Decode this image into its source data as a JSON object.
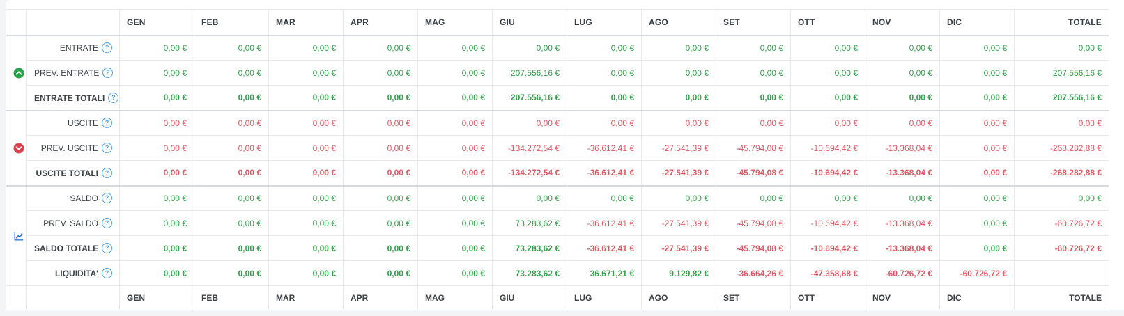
{
  "colors": {
    "positive": "#33a24c",
    "negative": "#e25865",
    "income_icon": "#27a348",
    "expense_icon": "#e0414e",
    "chart_icon": "#2f7fdb",
    "help_icon": "#49a0ea"
  },
  "table": {
    "columns": [
      "GEN",
      "FEB",
      "MAR",
      "APR",
      "MAG",
      "GIU",
      "LUG",
      "AGO",
      "SET",
      "OTT",
      "NOV",
      "DIC"
    ],
    "total_column": "TOTALE",
    "help_glyph": "?",
    "groups": [
      {
        "icon": "circle-arrow-up-icon",
        "rows": [
          {
            "label": "ENTRATE",
            "bold": false,
            "cells": [
              {
                "v": "0,00 €",
                "c": "g"
              },
              {
                "v": "0,00 €",
                "c": "g"
              },
              {
                "v": "0,00 €",
                "c": "g"
              },
              {
                "v": "0,00 €",
                "c": "g"
              },
              {
                "v": "0,00 €",
                "c": "g"
              },
              {
                "v": "0,00 €",
                "c": "g"
              },
              {
                "v": "0,00 €",
                "c": "g"
              },
              {
                "v": "0,00 €",
                "c": "g"
              },
              {
                "v": "0,00 €",
                "c": "g"
              },
              {
                "v": "0,00 €",
                "c": "g"
              },
              {
                "v": "0,00 €",
                "c": "g"
              },
              {
                "v": "0,00 €",
                "c": "g"
              },
              {
                "v": "0,00 €",
                "c": "g"
              }
            ]
          },
          {
            "label": "PREV. ENTRATE",
            "bold": false,
            "cells": [
              {
                "v": "0,00 €",
                "c": "g"
              },
              {
                "v": "0,00 €",
                "c": "g"
              },
              {
                "v": "0,00 €",
                "c": "g"
              },
              {
                "v": "0,00 €",
                "c": "g"
              },
              {
                "v": "0,00 €",
                "c": "g"
              },
              {
                "v": "207.556,16 €",
                "c": "g"
              },
              {
                "v": "0,00 €",
                "c": "g"
              },
              {
                "v": "0,00 €",
                "c": "g"
              },
              {
                "v": "0,00 €",
                "c": "g"
              },
              {
                "v": "0,00 €",
                "c": "g"
              },
              {
                "v": "0,00 €",
                "c": "g"
              },
              {
                "v": "0,00 €",
                "c": "g"
              },
              {
                "v": "207.556,16 €",
                "c": "g"
              }
            ]
          },
          {
            "label": "ENTRATE TOTALI",
            "bold": true,
            "cells": [
              {
                "v": "0,00 €",
                "c": "g"
              },
              {
                "v": "0,00 €",
                "c": "g"
              },
              {
                "v": "0,00 €",
                "c": "g"
              },
              {
                "v": "0,00 €",
                "c": "g"
              },
              {
                "v": "0,00 €",
                "c": "g"
              },
              {
                "v": "207.556,16 €",
                "c": "g"
              },
              {
                "v": "0,00 €",
                "c": "g"
              },
              {
                "v": "0,00 €",
                "c": "g"
              },
              {
                "v": "0,00 €",
                "c": "g"
              },
              {
                "v": "0,00 €",
                "c": "g"
              },
              {
                "v": "0,00 €",
                "c": "g"
              },
              {
                "v": "0,00 €",
                "c": "g"
              },
              {
                "v": "207.556,16 €",
                "c": "g"
              }
            ]
          }
        ]
      },
      {
        "icon": "circle-arrow-down-icon",
        "rows": [
          {
            "label": "USCITE",
            "bold": false,
            "cells": [
              {
                "v": "0,00 €",
                "c": "r"
              },
              {
                "v": "0,00 €",
                "c": "r"
              },
              {
                "v": "0,00 €",
                "c": "r"
              },
              {
                "v": "0,00 €",
                "c": "r"
              },
              {
                "v": "0,00 €",
                "c": "r"
              },
              {
                "v": "0,00 €",
                "c": "r"
              },
              {
                "v": "0,00 €",
                "c": "r"
              },
              {
                "v": "0,00 €",
                "c": "r"
              },
              {
                "v": "0,00 €",
                "c": "r"
              },
              {
                "v": "0,00 €",
                "c": "r"
              },
              {
                "v": "0,00 €",
                "c": "r"
              },
              {
                "v": "0,00 €",
                "c": "r"
              },
              {
                "v": "0,00 €",
                "c": "r"
              }
            ]
          },
          {
            "label": "PREV. USCITE",
            "bold": false,
            "cells": [
              {
                "v": "0,00 €",
                "c": "r"
              },
              {
                "v": "0,00 €",
                "c": "r"
              },
              {
                "v": "0,00 €",
                "c": "r"
              },
              {
                "v": "0,00 €",
                "c": "r"
              },
              {
                "v": "0,00 €",
                "c": "r"
              },
              {
                "v": "-134.272,54 €",
                "c": "r"
              },
              {
                "v": "-36.612,41 €",
                "c": "r"
              },
              {
                "v": "-27.541,39 €",
                "c": "r"
              },
              {
                "v": "-45.794,08 €",
                "c": "r"
              },
              {
                "v": "-10.694,42 €",
                "c": "r"
              },
              {
                "v": "-13.368,04 €",
                "c": "r"
              },
              {
                "v": "0,00 €",
                "c": "r"
              },
              {
                "v": "-268.282,88 €",
                "c": "r"
              }
            ]
          },
          {
            "label": "USCITE TOTALI",
            "bold": true,
            "cells": [
              {
                "v": "0,00 €",
                "c": "r"
              },
              {
                "v": "0,00 €",
                "c": "r"
              },
              {
                "v": "0,00 €",
                "c": "r"
              },
              {
                "v": "0,00 €",
                "c": "r"
              },
              {
                "v": "0,00 €",
                "c": "r"
              },
              {
                "v": "-134.272,54 €",
                "c": "r"
              },
              {
                "v": "-36.612,41 €",
                "c": "r"
              },
              {
                "v": "-27.541,39 €",
                "c": "r"
              },
              {
                "v": "-45.794,08 €",
                "c": "r"
              },
              {
                "v": "-10.694,42 €",
                "c": "r"
              },
              {
                "v": "-13.368,04 €",
                "c": "r"
              },
              {
                "v": "0,00 €",
                "c": "r"
              },
              {
                "v": "-268.282,88 €",
                "c": "r"
              }
            ]
          }
        ]
      },
      {
        "icon": "line-chart-icon",
        "rows": [
          {
            "label": "SALDO",
            "bold": false,
            "cells": [
              {
                "v": "0,00 €",
                "c": "g"
              },
              {
                "v": "0,00 €",
                "c": "g"
              },
              {
                "v": "0,00 €",
                "c": "g"
              },
              {
                "v": "0,00 €",
                "c": "g"
              },
              {
                "v": "0,00 €",
                "c": "g"
              },
              {
                "v": "0,00 €",
                "c": "g"
              },
              {
                "v": "0,00 €",
                "c": "g"
              },
              {
                "v": "0,00 €",
                "c": "g"
              },
              {
                "v": "0,00 €",
                "c": "g"
              },
              {
                "v": "0,00 €",
                "c": "g"
              },
              {
                "v": "0,00 €",
                "c": "g"
              },
              {
                "v": "0,00 €",
                "c": "g"
              },
              {
                "v": "0,00 €",
                "c": "g"
              }
            ]
          },
          {
            "label": "PREV. SALDO",
            "bold": false,
            "cells": [
              {
                "v": "0,00 €",
                "c": "g"
              },
              {
                "v": "0,00 €",
                "c": "g"
              },
              {
                "v": "0,00 €",
                "c": "g"
              },
              {
                "v": "0,00 €",
                "c": "g"
              },
              {
                "v": "0,00 €",
                "c": "g"
              },
              {
                "v": "73.283,62 €",
                "c": "g"
              },
              {
                "v": "-36.612,41 €",
                "c": "r"
              },
              {
                "v": "-27.541,39 €",
                "c": "r"
              },
              {
                "v": "-45.794,08 €",
                "c": "r"
              },
              {
                "v": "-10.694,42 €",
                "c": "r"
              },
              {
                "v": "-13.368,04 €",
                "c": "r"
              },
              {
                "v": "0,00 €",
                "c": "g"
              },
              {
                "v": "-60.726,72 €",
                "c": "r"
              }
            ]
          },
          {
            "label": "SALDO TOTALE",
            "bold": true,
            "cells": [
              {
                "v": "0,00 €",
                "c": "g"
              },
              {
                "v": "0,00 €",
                "c": "g"
              },
              {
                "v": "0,00 €",
                "c": "g"
              },
              {
                "v": "0,00 €",
                "c": "g"
              },
              {
                "v": "0,00 €",
                "c": "g"
              },
              {
                "v": "73.283,62 €",
                "c": "g"
              },
              {
                "v": "-36.612,41 €",
                "c": "r"
              },
              {
                "v": "-27.541,39 €",
                "c": "r"
              },
              {
                "v": "-45.794,08 €",
                "c": "r"
              },
              {
                "v": "-10.694,42 €",
                "c": "r"
              },
              {
                "v": "-13.368,04 €",
                "c": "r"
              },
              {
                "v": "0,00 €",
                "c": "g"
              },
              {
                "v": "-60.726,72 €",
                "c": "r"
              }
            ]
          },
          {
            "label": "LIQUIDITA'",
            "bold": true,
            "cells": [
              {
                "v": "0,00 €",
                "c": "g"
              },
              {
                "v": "0,00 €",
                "c": "g"
              },
              {
                "v": "0,00 €",
                "c": "g"
              },
              {
                "v": "0,00 €",
                "c": "g"
              },
              {
                "v": "0,00 €",
                "c": "g"
              },
              {
                "v": "73.283,62 €",
                "c": "g"
              },
              {
                "v": "36.671,21 €",
                "c": "g"
              },
              {
                "v": "9.129,82 €",
                "c": "g"
              },
              {
                "v": "-36.664,26 €",
                "c": "r"
              },
              {
                "v": "-47.358,68 €",
                "c": "r"
              },
              {
                "v": "-60.726,72 €",
                "c": "r"
              },
              {
                "v": "-60.726,72 €",
                "c": "r"
              },
              {
                "v": "",
                "c": ""
              }
            ]
          }
        ]
      }
    ]
  }
}
